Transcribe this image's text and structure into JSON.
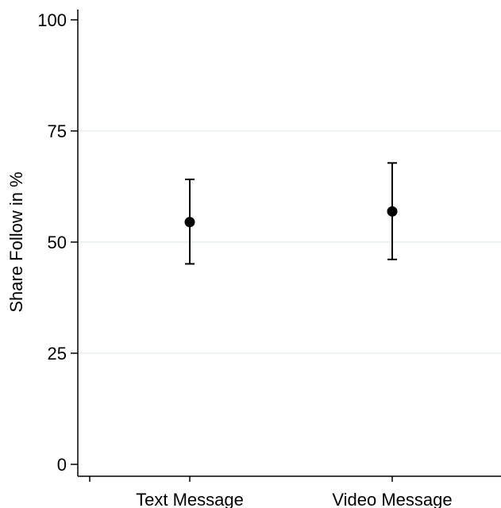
{
  "chart_data": {
    "type": "scatter",
    "title": "",
    "xlabel": "",
    "ylabel": "Share Follow in %",
    "ylim": [
      0,
      100
    ],
    "yticks": [
      0,
      25,
      50,
      75,
      100
    ],
    "grid": true,
    "legend": "none",
    "categories": [
      "Text Message",
      "Video Message"
    ],
    "series": [
      {
        "values": [
          54.5,
          56.9
        ],
        "ci_lower": [
          45.1,
          46.1
        ],
        "ci_upper": [
          64.1,
          67.8
        ]
      }
    ],
    "colors": {
      "marker": "#000000",
      "grid": "#e6eef0",
      "axis": "#000000"
    }
  }
}
